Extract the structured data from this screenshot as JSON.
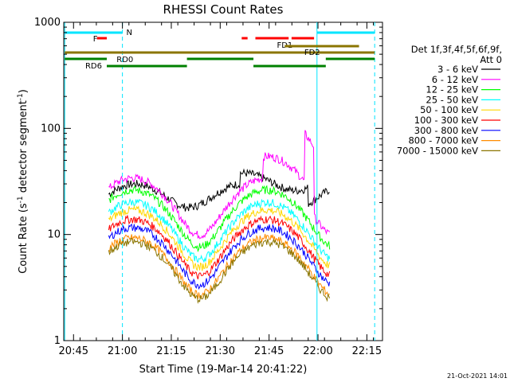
{
  "chart_data": {
    "type": "line",
    "title": "RHESSI Count Rates",
    "xlabel": "Start Time (19-Mar-14 20:41:22)",
    "ylabel_main": "Count Rate (s",
    "ylabel_sup1": "-1",
    "ylabel_mid": " detector segment",
    "ylabel_sup2": "-1",
    "ylabel_end": ")",
    "yscale": "log",
    "ylim": [
      1,
      1000
    ],
    "xlim_minutes": [
      20.7,
      22.33
    ],
    "x_ticks": [
      {
        "label": "20:45",
        "t": 20.75
      },
      {
        "label": "21:00",
        "t": 21.0
      },
      {
        "label": "21:15",
        "t": 21.25
      },
      {
        "label": "21:30",
        "t": 21.5
      },
      {
        "label": "21:45",
        "t": 21.75
      },
      {
        "label": "22:00",
        "t": 22.0
      },
      {
        "label": "22:15",
        "t": 22.25
      }
    ],
    "y_ticks": [
      {
        "label": "1",
        "v": 1
      },
      {
        "label": "10",
        "v": 10
      },
      {
        "label": "100",
        "v": 100
      },
      {
        "label": "1000",
        "v": 1000
      }
    ],
    "legend_header": "Det 1f,3f,4f,5f,6f,9f,",
    "legend_att": "Att 0",
    "series": [
      {
        "name": "3 - 6 keV",
        "color": "#000000"
      },
      {
        "name": "6 - 12 keV",
        "color": "#ff00ff"
      },
      {
        "name": "12 - 25 keV",
        "color": "#00ff00"
      },
      {
        "name": "25 - 50 keV",
        "color": "#00ffff"
      },
      {
        "name": "50 - 100 keV",
        "color": "#ffd700"
      },
      {
        "name": "100 - 300 keV",
        "color": "#ff0000"
      },
      {
        "name": "300 - 800 keV",
        "color": "#0000ff"
      },
      {
        "name": "800 - 7000 keV",
        "color": "#ff8c00"
      },
      {
        "name": "7000 - 15000 keV",
        "color": "#8b7500"
      }
    ],
    "flags": [
      {
        "label": "N",
        "color": "#00e5ff"
      },
      {
        "label": "F",
        "color": "#ff0000"
      },
      {
        "label": "FD1",
        "color": "#8b7500"
      },
      {
        "label": "FD2",
        "color": "#8b7500"
      },
      {
        "label": "RD0",
        "color": "#008000"
      },
      {
        "label": "RD6",
        "color": "#008000"
      }
    ],
    "timestamp": "21-Oct-2021 14:01"
  }
}
